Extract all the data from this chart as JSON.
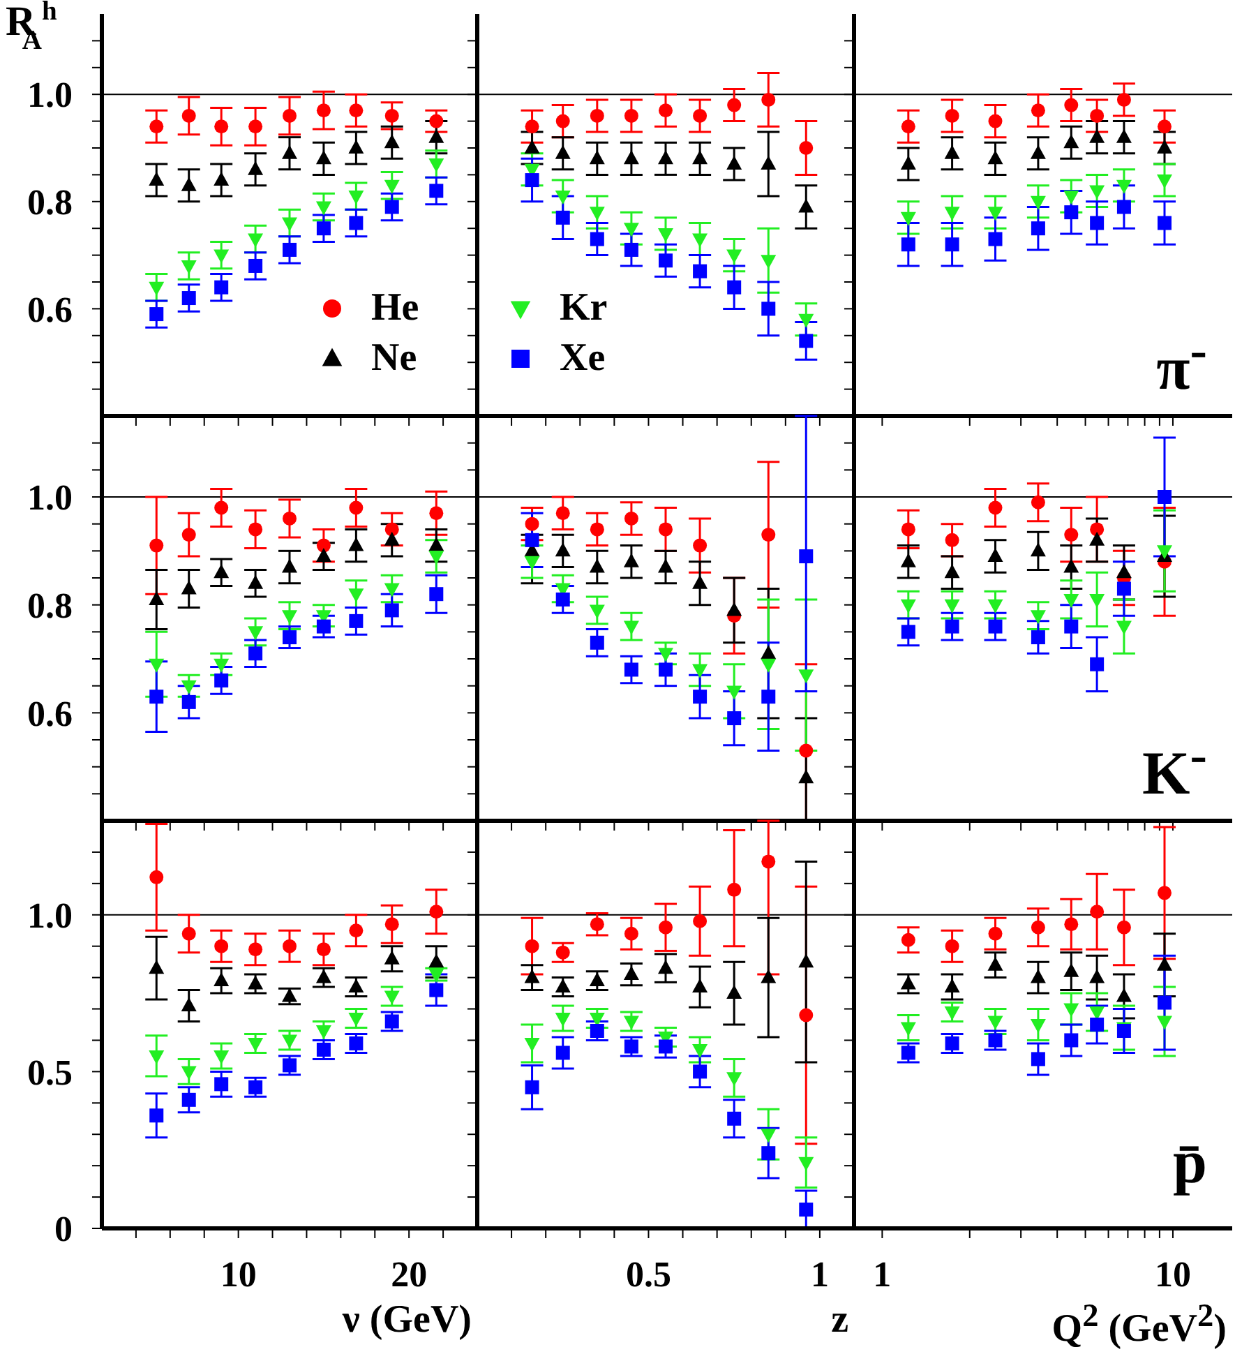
{
  "chart_data": [
    {
      "type": "scatter",
      "ylabel": "R$_{A}$$^{h}$",
      "legend": "bottom right",
      "tick_labels": "y",
      "x": [
        5.2,
        7.1,
        9.0,
        11.0,
        13.0,
        15.0,
        16.9,
        19.0,
        21.6
      ],
      "xlim": [
        2,
        24
      ],
      "xticks": [
        {
          "value": 4,
          "label": null
        },
        {
          "value": 6,
          "label": null
        },
        {
          "value": 8,
          "label": null
        },
        10,
        {
          "value": 12,
          "label": null
        },
        {
          "value": 14,
          "label": null
        },
        {
          "value": 16,
          "label": null
        },
        {
          "value": 18,
          "label": null
        },
        20,
        {
          "value": 22,
          "label": null
        }
      ],
      "ylim": [
        0.4,
        1.15
      ],
      "yticks": [
        {
          "value": 0.45,
          "label": null
        },
        {
          "value": 0.5,
          "label": null
        },
        {
          "value": 0.55,
          "label": null
        },
        0.6,
        {
          "value": 0.65,
          "label": null
        },
        {
          "value": 0.7,
          "label": null
        },
        {
          "value": 0.75,
          "label": null
        },
        0.8,
        {
          "value": 0.85,
          "label": null
        },
        {
          "value": 0.9,
          "label": null
        },
        {
          "value": 0.95,
          "label": null
        },
        {
          "value": 1,
          "label": "1.0"
        },
        {
          "value": 1.05,
          "label": null
        },
        {
          "value": 1.1,
          "label": null
        }
      ],
      "ref_lines": [
        {
          "axis": "y",
          "value": 1
        }
      ],
      "series": [
        {
          "name": "He",
          "color": "#ff0000",
          "marker": "circle",
          "values": [
            0.94,
            0.96,
            0.94,
            0.94,
            0.96,
            0.97,
            0.97,
            0.96,
            0.95
          ],
          "errors": [
            0.03,
            0.035,
            0.035,
            0.035,
            0.035,
            0.035,
            0.03,
            0.025,
            0.02
          ]
        },
        {
          "name": "Ne",
          "color": "#000000",
          "marker": "triangle",
          "values": [
            0.84,
            0.83,
            0.84,
            0.86,
            0.89,
            0.88,
            0.9,
            0.91,
            0.92
          ],
          "errors": [
            0.03,
            0.03,
            0.03,
            0.03,
            0.03,
            0.03,
            0.03,
            0.03,
            0.03
          ]
        },
        {
          "name": "Kr",
          "color": "#22ee22",
          "marker": "triangle-down",
          "values": [
            0.64,
            0.68,
            0.7,
            0.73,
            0.76,
            0.79,
            0.81,
            0.83,
            0.87
          ],
          "errors": [
            0.025,
            0.025,
            0.025,
            0.025,
            0.025,
            0.025,
            0.025,
            0.025,
            0.025
          ]
        },
        {
          "name": "Xe",
          "color": "#0000ff",
          "marker": "square",
          "values": [
            0.59,
            0.62,
            0.64,
            0.68,
            0.71,
            0.75,
            0.76,
            0.79,
            0.82
          ],
          "errors": [
            0.025,
            0.025,
            0.025,
            0.025,
            0.025,
            0.025,
            0.025,
            0.025,
            0.025
          ]
        }
      ]
    },
    {
      "type": "scatter",
      "tick_labels": false,
      "x": [
        0.16,
        0.25,
        0.35,
        0.45,
        0.55,
        0.65,
        0.75,
        0.85,
        0.96
      ],
      "xlim": [
        0,
        1.1
      ],
      "xticks": [
        {
          "value": 0.1,
          "label": null
        },
        {
          "value": 0.2,
          "label": null
        },
        {
          "value": 0.3,
          "label": null
        },
        {
          "value": 0.4,
          "label": null
        },
        0.5,
        {
          "value": 0.6,
          "label": null
        },
        {
          "value": 0.7,
          "label": null
        },
        {
          "value": 0.8,
          "label": null
        },
        {
          "value": 0.9,
          "label": null
        },
        1
      ],
      "ylim": [
        0.4,
        1.15
      ],
      "yticks": [
        {
          "value": 0.45,
          "label": null
        },
        {
          "value": 0.5,
          "label": null
        },
        {
          "value": 0.55,
          "label": null
        },
        0.6,
        {
          "value": 0.65,
          "label": null
        },
        {
          "value": 0.7,
          "label": null
        },
        {
          "value": 0.75,
          "label": null
        },
        0.8,
        {
          "value": 0.85,
          "label": null
        },
        {
          "value": 0.9,
          "label": null
        },
        {
          "value": 0.95,
          "label": null
        },
        {
          "value": 1,
          "label": null
        },
        {
          "value": 1.05,
          "label": null
        },
        {
          "value": 1.1,
          "label": null
        }
      ],
      "ref_lines": [
        {
          "axis": "y",
          "value": 1
        }
      ],
      "series": [
        {
          "color": "#ff0000",
          "marker": "circle",
          "values": [
            0.94,
            0.95,
            0.96,
            0.96,
            0.97,
            0.96,
            0.98,
            0.99,
            0.9
          ],
          "errors": [
            0.03,
            0.03,
            0.03,
            0.03,
            0.03,
            0.03,
            0.03,
            0.05,
            0.05
          ]
        },
        {
          "color": "#000000",
          "marker": "triangle",
          "values": [
            0.9,
            0.89,
            0.88,
            0.88,
            0.88,
            0.88,
            0.87,
            0.87,
            0.79
          ],
          "errors": [
            0.03,
            0.03,
            0.03,
            0.03,
            0.03,
            0.03,
            0.03,
            0.06,
            0.04
          ]
        },
        {
          "color": "#22ee22",
          "marker": "triangle-down",
          "values": [
            0.86,
            0.81,
            0.78,
            0.75,
            0.74,
            0.73,
            0.7,
            0.69,
            0.58
          ],
          "errors": [
            0.03,
            0.03,
            0.03,
            0.03,
            0.03,
            0.03,
            0.03,
            0.06,
            0.03
          ]
        },
        {
          "color": "#0000ff",
          "marker": "square",
          "values": [
            0.84,
            0.77,
            0.73,
            0.71,
            0.69,
            0.67,
            0.64,
            0.6,
            0.54
          ],
          "errors": [
            0.04,
            0.04,
            0.03,
            0.03,
            0.03,
            0.03,
            0.04,
            0.05,
            0.035
          ]
        }
      ]
    },
    {
      "type": "scatter",
      "tick_labels": false,
      "log": "x",
      "annotations": [
        "π$^{-}$"
      ],
      "x": [
        1.23,
        1.74,
        2.45,
        3.44,
        4.47,
        5.48,
        6.79,
        9.36
      ],
      "xlim": [
        0.8,
        16
      ],
      "xticks": [
        1,
        {
          "value": 2,
          "label": null
        },
        {
          "value": 3,
          "label": null
        },
        {
          "value": 4,
          "label": null
        },
        {
          "value": 5,
          "label": null
        },
        {
          "value": 6,
          "label": null
        },
        {
          "value": 7,
          "label": null
        },
        {
          "value": 8,
          "label": null
        },
        {
          "value": 9,
          "label": null
        },
        10
      ],
      "ylim": [
        0.4,
        1.15
      ],
      "yticks": [
        {
          "value": 0.45,
          "label": null
        },
        {
          "value": 0.5,
          "label": null
        },
        {
          "value": 0.55,
          "label": null
        },
        0.6,
        {
          "value": 0.65,
          "label": null
        },
        {
          "value": 0.7,
          "label": null
        },
        {
          "value": 0.75,
          "label": null
        },
        0.8,
        {
          "value": 0.85,
          "label": null
        },
        {
          "value": 0.9,
          "label": null
        },
        {
          "value": 0.95,
          "label": null
        },
        {
          "value": 1,
          "label": null
        },
        {
          "value": 1.05,
          "label": null
        },
        {
          "value": 1.1,
          "label": null
        }
      ],
      "ref_lines": [
        {
          "axis": "y",
          "value": 1
        }
      ],
      "series": [
        {
          "color": "#ff0000",
          "marker": "circle",
          "values": [
            0.94,
            0.96,
            0.95,
            0.97,
            0.98,
            0.96,
            0.99,
            0.94
          ],
          "errors": [
            0.03,
            0.03,
            0.03,
            0.03,
            0.03,
            0.03,
            0.03,
            0.03
          ]
        },
        {
          "color": "#000000",
          "marker": "triangle",
          "values": [
            0.87,
            0.89,
            0.88,
            0.89,
            0.91,
            0.92,
            0.92,
            0.9
          ],
          "errors": [
            0.03,
            0.03,
            0.03,
            0.03,
            0.03,
            0.03,
            0.03,
            0.03
          ]
        },
        {
          "color": "#22ee22",
          "marker": "triangle-down",
          "values": [
            0.77,
            0.78,
            0.78,
            0.8,
            0.81,
            0.82,
            0.83,
            0.84
          ],
          "errors": [
            0.03,
            0.03,
            0.03,
            0.03,
            0.03,
            0.03,
            0.03,
            0.03
          ]
        },
        {
          "color": "#0000ff",
          "marker": "square",
          "values": [
            0.72,
            0.72,
            0.73,
            0.75,
            0.78,
            0.76,
            0.79,
            0.76
          ],
          "errors": [
            0.04,
            0.04,
            0.04,
            0.04,
            0.04,
            0.04,
            0.04,
            0.04
          ]
        }
      ]
    },
    {
      "type": "scatter",
      "tick_labels": "y",
      "x": [
        5.2,
        7.1,
        9.0,
        11.0,
        13.0,
        15.0,
        16.9,
        19.0,
        21.6
      ],
      "xlim": [
        2,
        24
      ],
      "xticks": [
        {
          "value": 4,
          "label": null
        },
        {
          "value": 6,
          "label": null
        },
        {
          "value": 8,
          "label": null
        },
        10,
        {
          "value": 12,
          "label": null
        },
        {
          "value": 14,
          "label": null
        },
        {
          "value": 16,
          "label": null
        },
        {
          "value": 18,
          "label": null
        },
        20,
        {
          "value": 22,
          "label": null
        }
      ],
      "ylim": [
        0.4,
        1.15
      ],
      "yticks": [
        {
          "value": 0.45,
          "label": null
        },
        {
          "value": 0.5,
          "label": null
        },
        {
          "value": 0.55,
          "label": null
        },
        0.6,
        {
          "value": 0.65,
          "label": null
        },
        {
          "value": 0.7,
          "label": null
        },
        {
          "value": 0.75,
          "label": null
        },
        0.8,
        {
          "value": 0.85,
          "label": null
        },
        {
          "value": 0.9,
          "label": null
        },
        {
          "value": 0.95,
          "label": null
        },
        {
          "value": 1,
          "label": "1.0"
        },
        {
          "value": 1.05,
          "label": null
        },
        {
          "value": 1.1,
          "label": null
        }
      ],
      "ref_lines": [
        {
          "axis": "y",
          "value": 1
        }
      ],
      "series": [
        {
          "color": "#ff0000",
          "marker": "circle",
          "values": [
            0.91,
            0.93,
            0.98,
            0.94,
            0.96,
            0.91,
            0.98,
            0.94,
            0.97
          ],
          "errors": [
            0.09,
            0.04,
            0.035,
            0.035,
            0.035,
            0.03,
            0.035,
            0.03,
            0.04
          ]
        },
        {
          "color": "#000000",
          "marker": "triangle",
          "values": [
            0.81,
            0.83,
            0.86,
            0.84,
            0.87,
            0.89,
            0.91,
            0.92,
            0.91
          ],
          "errors": [
            0.055,
            0.035,
            0.025,
            0.025,
            0.03,
            0.025,
            0.03,
            0.03,
            0.03
          ]
        },
        {
          "color": "#22ee22",
          "marker": "triangle-down",
          "values": [
            0.69,
            0.65,
            0.69,
            0.75,
            0.78,
            0.78,
            0.82,
            0.83,
            0.89
          ],
          "errors": [
            0.06,
            0.02,
            0.02,
            0.025,
            0.025,
            0.02,
            0.025,
            0.025,
            0.03
          ]
        },
        {
          "color": "#0000ff",
          "marker": "square",
          "values": [
            0.63,
            0.62,
            0.66,
            0.71,
            0.74,
            0.76,
            0.77,
            0.79,
            0.82
          ],
          "errors": [
            0.065,
            0.03,
            0.025,
            0.025,
            0.02,
            0.02,
            0.025,
            0.03,
            0.035
          ]
        }
      ]
    },
    {
      "type": "scatter",
      "tick_labels": false,
      "x": [
        0.16,
        0.25,
        0.35,
        0.45,
        0.55,
        0.65,
        0.75,
        0.85,
        0.96
      ],
      "xlim": [
        0,
        1.1
      ],
      "xticks": [
        {
          "value": 0.1,
          "label": null
        },
        {
          "value": 0.2,
          "label": null
        },
        {
          "value": 0.3,
          "label": null
        },
        {
          "value": 0.4,
          "label": null
        },
        0.5,
        {
          "value": 0.6,
          "label": null
        },
        {
          "value": 0.7,
          "label": null
        },
        {
          "value": 0.8,
          "label": null
        },
        {
          "value": 0.9,
          "label": null
        },
        1
      ],
      "ylim": [
        0.4,
        1.15
      ],
      "yticks": [
        {
          "value": 0.45,
          "label": null
        },
        {
          "value": 0.5,
          "label": null
        },
        {
          "value": 0.55,
          "label": null
        },
        0.6,
        {
          "value": 0.65,
          "label": null
        },
        {
          "value": 0.7,
          "label": null
        },
        {
          "value": 0.75,
          "label": null
        },
        0.8,
        {
          "value": 0.85,
          "label": null
        },
        {
          "value": 0.9,
          "label": null
        },
        {
          "value": 0.95,
          "label": null
        },
        {
          "value": 1,
          "label": null
        },
        {
          "value": 1.05,
          "label": null
        },
        {
          "value": 1.1,
          "label": null
        }
      ],
      "ref_lines": [
        {
          "axis": "y",
          "value": 1
        }
      ],
      "series": [
        {
          "color": "#ff0000",
          "marker": "circle",
          "values": [
            0.95,
            0.97,
            0.94,
            0.96,
            0.94,
            0.91,
            0.78,
            0.93,
            0.53
          ],
          "errors": [
            0.03,
            0.03,
            0.03,
            0.03,
            0.04,
            0.05,
            0.07,
            0.135,
            [
              0.4,
              0.69
            ]
          ]
        },
        {
          "color": "#000000",
          "marker": "triangle",
          "values": [
            0.9,
            0.9,
            0.87,
            0.88,
            0.87,
            0.84,
            0.79,
            0.71,
            0.48
          ],
          "errors": [
            [
              0.84,
              0.93
            ],
            0.03,
            0.03,
            0.03,
            0.03,
            0.04,
            0.06,
            0.12,
            [
              0.4,
              0.59
            ]
          ]
        },
        {
          "color": "#22ee22",
          "marker": "triangle-down",
          "values": [
            0.88,
            0.83,
            0.79,
            0.76,
            0.71,
            0.68,
            0.64,
            0.69,
            0.67
          ],
          "errors": [
            0.03,
            0.025,
            0.025,
            0.025,
            0.02,
            0.03,
            0.05,
            0.12,
            0.14
          ]
        },
        {
          "color": "#0000ff",
          "marker": "square",
          "values": [
            0.92,
            0.81,
            0.73,
            0.68,
            0.68,
            0.63,
            0.59,
            0.63,
            0.89
          ],
          "errors": [
            0.05,
            0.025,
            0.025,
            0.025,
            0.03,
            0.04,
            0.05,
            0.1,
            [
              0.64,
              1.15
            ]
          ]
        }
      ]
    },
    {
      "type": "scatter",
      "tick_labels": false,
      "log": "x",
      "annotations": [
        "K$^{-}$"
      ],
      "x": [
        1.23,
        1.74,
        2.45,
        3.44,
        4.47,
        5.48,
        6.79,
        9.36
      ],
      "xlim": [
        0.8,
        16
      ],
      "xticks": [
        1,
        {
          "value": 2,
          "label": null
        },
        {
          "value": 3,
          "label": null
        },
        {
          "value": 4,
          "label": null
        },
        {
          "value": 5,
          "label": null
        },
        {
          "value": 6,
          "label": null
        },
        {
          "value": 7,
          "label": null
        },
        {
          "value": 8,
          "label": null
        },
        {
          "value": 9,
          "label": null
        },
        10
      ],
      "ylim": [
        0.4,
        1.15
      ],
      "yticks": [
        {
          "value": 0.45,
          "label": null
        },
        {
          "value": 0.5,
          "label": null
        },
        {
          "value": 0.55,
          "label": null
        },
        0.6,
        {
          "value": 0.65,
          "label": null
        },
        {
          "value": 0.7,
          "label": null
        },
        {
          "value": 0.75,
          "label": null
        },
        0.8,
        {
          "value": 0.85,
          "label": null
        },
        {
          "value": 0.9,
          "label": null
        },
        {
          "value": 0.95,
          "label": null
        },
        {
          "value": 1,
          "label": null
        },
        {
          "value": 1.05,
          "label": null
        },
        {
          "value": 1.1,
          "label": null
        }
      ],
      "ref_lines": [
        {
          "axis": "y",
          "value": 1
        }
      ],
      "series": [
        {
          "color": "#ff0000",
          "marker": "circle",
          "values": [
            0.94,
            0.92,
            0.98,
            0.99,
            0.93,
            0.94,
            0.85,
            0.88
          ],
          "errors": [
            0.035,
            0.03,
            0.035,
            0.035,
            0.05,
            0.06,
            0.05,
            0.1
          ]
        },
        {
          "color": "#000000",
          "marker": "triangle",
          "values": [
            0.88,
            0.86,
            0.89,
            0.9,
            0.87,
            0.92,
            0.86,
            0.89
          ],
          "errors": [
            0.03,
            0.03,
            0.03,
            0.035,
            0.04,
            0.04,
            0.05,
            0.075
          ]
        },
        {
          "color": "#22ee22",
          "marker": "triangle-down",
          "values": [
            0.8,
            0.8,
            0.8,
            0.78,
            0.81,
            0.81,
            0.76,
            0.9
          ],
          "errors": [
            0.025,
            0.025,
            0.025,
            0.025,
            0.035,
            0.05,
            0.05,
            0.075
          ]
        },
        {
          "color": "#0000ff",
          "marker": "square",
          "values": [
            0.75,
            0.76,
            0.76,
            0.74,
            0.76,
            0.69,
            0.83,
            1.0
          ],
          "errors": [
            0.025,
            0.025,
            0.025,
            0.03,
            0.04,
            0.05,
            0.05,
            0.11
          ]
        }
      ]
    },
    {
      "type": "scatter",
      "xlabel": "ν (GeV)",
      "x": [
        5.2,
        7.1,
        9.0,
        11.0,
        13.0,
        15.0,
        16.9,
        19.0,
        21.6
      ],
      "xlim": [
        2,
        24
      ],
      "xticks": [
        {
          "value": 4,
          "label": null
        },
        {
          "value": 6,
          "label": null
        },
        {
          "value": 8,
          "label": null
        },
        10,
        {
          "value": 12,
          "label": null
        },
        {
          "value": 14,
          "label": null
        },
        {
          "value": 16,
          "label": null
        },
        {
          "value": 18,
          "label": null
        },
        20,
        {
          "value": 22,
          "label": null
        }
      ],
      "ylim": [
        0,
        1.3
      ],
      "yticks": [
        0,
        {
          "value": 0.1,
          "label": null
        },
        {
          "value": 0.2,
          "label": null
        },
        {
          "value": 0.3,
          "label": null
        },
        {
          "value": 0.4,
          "label": null
        },
        0.5,
        {
          "value": 0.6,
          "label": null
        },
        {
          "value": 0.7,
          "label": null
        },
        {
          "value": 0.8,
          "label": null
        },
        {
          "value": 0.9,
          "label": null
        },
        {
          "value": 1,
          "label": "1.0"
        },
        {
          "value": 1.1,
          "label": null
        },
        {
          "value": 1.2,
          "label": null
        }
      ],
      "ref_lines": [
        {
          "axis": "y",
          "value": 1
        }
      ],
      "series": [
        {
          "color": "#ff0000",
          "marker": "circle",
          "values": [
            1.12,
            0.94,
            0.9,
            0.89,
            0.9,
            0.89,
            0.95,
            0.97,
            1.01
          ],
          "errors": [
            0.17,
            0.06,
            0.05,
            0.05,
            0.05,
            0.05,
            0.05,
            0.06,
            0.07
          ]
        },
        {
          "color": "#000000",
          "marker": "triangle",
          "values": [
            0.83,
            0.71,
            0.79,
            0.78,
            0.74,
            0.8,
            0.77,
            0.86,
            0.85
          ],
          "errors": [
            0.1,
            0.05,
            0.04,
            0.03,
            0.025,
            0.03,
            0.03,
            0.04,
            0.05
          ]
        },
        {
          "color": "#22ee22",
          "marker": "triangle-down",
          "values": [
            0.55,
            0.5,
            0.55,
            0.59,
            0.6,
            0.63,
            0.67,
            0.74,
            0.81
          ],
          "errors": [
            0.065,
            0.04,
            0.04,
            0.03,
            0.03,
            0.03,
            0.03,
            0.03,
            0.02
          ]
        },
        {
          "color": "#0000ff",
          "marker": "square",
          "values": [
            0.36,
            0.41,
            0.46,
            0.45,
            0.52,
            0.57,
            0.59,
            0.66,
            0.76
          ],
          "errors": [
            0.07,
            0.04,
            0.04,
            0.03,
            0.03,
            0.03,
            0.03,
            0.03,
            0.05
          ]
        }
      ]
    },
    {
      "type": "scatter",
      "xlabel": "z",
      "tick_labels": "x",
      "x": [
        0.16,
        0.25,
        0.35,
        0.45,
        0.55,
        0.65,
        0.75,
        0.85,
        0.96
      ],
      "xlim": [
        0,
        1.1
      ],
      "xticks": [
        {
          "value": 0.1,
          "label": null
        },
        {
          "value": 0.2,
          "label": null
        },
        {
          "value": 0.3,
          "label": null
        },
        {
          "value": 0.4,
          "label": null
        },
        0.5,
        {
          "value": 0.6,
          "label": null
        },
        {
          "value": 0.7,
          "label": null
        },
        {
          "value": 0.8,
          "label": null
        },
        {
          "value": 0.9,
          "label": null
        },
        1
      ],
      "ylim": [
        0,
        1.3
      ],
      "yticks": [
        0,
        {
          "value": 0.1,
          "label": null
        },
        {
          "value": 0.2,
          "label": null
        },
        {
          "value": 0.3,
          "label": null
        },
        {
          "value": 0.4,
          "label": null
        },
        0.5,
        {
          "value": 0.6,
          "label": null
        },
        {
          "value": 0.7,
          "label": null
        },
        {
          "value": 0.8,
          "label": null
        },
        {
          "value": 0.9,
          "label": null
        },
        {
          "value": 1,
          "label": null
        },
        {
          "value": 1.1,
          "label": null
        },
        {
          "value": 1.2,
          "label": null
        }
      ],
      "ref_lines": [
        {
          "axis": "y",
          "value": 1
        }
      ],
      "series": [
        {
          "color": "#ff0000",
          "marker": "circle",
          "values": [
            0.9,
            0.88,
            0.97,
            0.94,
            0.96,
            0.98,
            1.08,
            1.17,
            0.68
          ],
          "errors": [
            0.09,
            0.03,
            0.035,
            0.05,
            0.075,
            0.11,
            [
              0.9,
              1.27
            ],
            [
              0.81,
              1.3
            ],
            [
              0.27,
              1.09
            ]
          ]
        },
        {
          "color": "#000000",
          "marker": "triangle",
          "values": [
            0.8,
            0.77,
            0.79,
            0.81,
            0.83,
            0.77,
            0.75,
            0.8,
            0.85
          ],
          "errors": [
            0.04,
            0.03,
            0.03,
            0.035,
            0.045,
            0.065,
            0.1,
            0.19,
            0.32
          ]
        },
        {
          "color": "#22ee22",
          "marker": "triangle-down",
          "values": [
            0.59,
            0.67,
            0.67,
            0.66,
            0.61,
            0.57,
            0.48,
            0.3,
            0.21
          ],
          "errors": [
            0.06,
            0.04,
            0.03,
            0.03,
            0.03,
            0.04,
            0.06,
            0.08,
            0.08
          ]
        },
        {
          "color": "#0000ff",
          "marker": "square",
          "values": [
            0.45,
            0.56,
            0.63,
            0.58,
            0.58,
            0.5,
            0.35,
            0.24,
            0.06
          ],
          "errors": [
            0.07,
            0.05,
            0.03,
            0.03,
            0.035,
            0.05,
            0.06,
            0.08,
            [
              0,
              0.12
            ]
          ]
        }
      ]
    },
    {
      "type": "scatter",
      "xlabel": "Q$^{2}$ (GeV$^{2}$)",
      "tick_labels": "x",
      "log": "x",
      "annotations": [
        "p̄"
      ],
      "x": [
        1.23,
        1.74,
        2.45,
        3.44,
        4.47,
        5.48,
        6.79,
        9.36
      ],
      "xlim": [
        0.8,
        16
      ],
      "xticks": [
        1,
        {
          "value": 2,
          "label": null
        },
        {
          "value": 3,
          "label": null
        },
        {
          "value": 4,
          "label": null
        },
        {
          "value": 5,
          "label": null
        },
        {
          "value": 6,
          "label": null
        },
        {
          "value": 7,
          "label": null
        },
        {
          "value": 8,
          "label": null
        },
        {
          "value": 9,
          "label": null
        },
        10
      ],
      "ylim": [
        0,
        1.3
      ],
      "yticks": [
        0,
        {
          "value": 0.1,
          "label": null
        },
        {
          "value": 0.2,
          "label": null
        },
        {
          "value": 0.3,
          "label": null
        },
        {
          "value": 0.4,
          "label": null
        },
        0.5,
        {
          "value": 0.6,
          "label": null
        },
        {
          "value": 0.7,
          "label": null
        },
        {
          "value": 0.8,
          "label": null
        },
        {
          "value": 0.9,
          "label": null
        },
        {
          "value": 1,
          "label": null
        },
        {
          "value": 1.1,
          "label": null
        },
        {
          "value": 1.2,
          "label": null
        }
      ],
      "ref_lines": [
        {
          "axis": "y",
          "value": 1
        }
      ],
      "series": [
        {
          "color": "#ff0000",
          "marker": "circle",
          "values": [
            0.92,
            0.9,
            0.94,
            0.96,
            0.97,
            1.01,
            0.96,
            1.07
          ],
          "errors": [
            0.04,
            0.05,
            0.05,
            0.06,
            0.08,
            0.12,
            0.12,
            0.21
          ]
        },
        {
          "color": "#000000",
          "marker": "triangle",
          "values": [
            0.78,
            0.77,
            0.84,
            0.8,
            0.82,
            0.8,
            0.74,
            0.84
          ],
          "errors": [
            0.03,
            0.04,
            0.04,
            0.05,
            0.06,
            0.07,
            0.07,
            0.1
          ]
        },
        {
          "color": "#22ee22",
          "marker": "triangle-down",
          "values": [
            0.64,
            0.69,
            0.66,
            0.65,
            0.7,
            0.69,
            0.64,
            0.66
          ],
          "errors": [
            0.04,
            0.03,
            0.04,
            0.05,
            0.05,
            0.06,
            0.07,
            0.11
          ]
        },
        {
          "color": "#0000ff",
          "marker": "square",
          "values": [
            0.56,
            0.59,
            0.6,
            0.54,
            0.6,
            0.65,
            0.63,
            0.72
          ],
          "errors": [
            0.03,
            0.03,
            0.03,
            0.05,
            0.05,
            0.06,
            0.07,
            0.15
          ]
        }
      ]
    }
  ]
}
